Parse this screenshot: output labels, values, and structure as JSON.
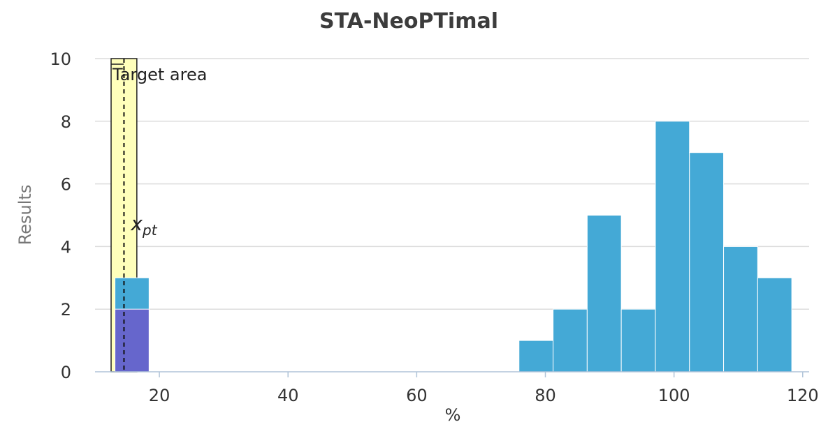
{
  "chart_data": {
    "type": "bar",
    "title": "STA-NeoPTimal",
    "xlabel": "%",
    "ylabel": "Results",
    "xlim": [
      10,
      121
    ],
    "ylim": [
      0,
      10
    ],
    "x_ticks": [
      20,
      40,
      60,
      80,
      100,
      120
    ],
    "y_ticks": [
      0,
      2,
      4,
      6,
      8,
      10
    ],
    "grid": "horizontal",
    "bin_width": 5.3,
    "series": [
      {
        "color": "#44a9d6",
        "bins": [
          {
            "x0": 13.1,
            "x1": 18.4,
            "value": 3
          },
          {
            "x0": 75.9,
            "x1": 81.2,
            "value": 1
          },
          {
            "x0": 81.2,
            "x1": 86.5,
            "value": 2
          },
          {
            "x0": 86.5,
            "x1": 91.8,
            "value": 5
          },
          {
            "x0": 91.8,
            "x1": 97.1,
            "value": 2
          },
          {
            "x0": 97.1,
            "x1": 102.4,
            "value": 8
          },
          {
            "x0": 102.4,
            "x1": 107.7,
            "value": 7
          },
          {
            "x0": 107.7,
            "x1": 113.0,
            "value": 4
          },
          {
            "x0": 113.0,
            "x1": 118.3,
            "value": 3
          }
        ]
      },
      {
        "color": "#6666cc",
        "bins": [
          {
            "x0": 13.1,
            "x1": 18.4,
            "value": 2
          }
        ]
      }
    ],
    "target_area": {
      "x0": 12.5,
      "x1": 16.5,
      "label": "Target area",
      "color": "#ffffbb"
    },
    "x_pt": {
      "x": 14.5,
      "label_base": "x",
      "label_sub": "pt"
    }
  }
}
